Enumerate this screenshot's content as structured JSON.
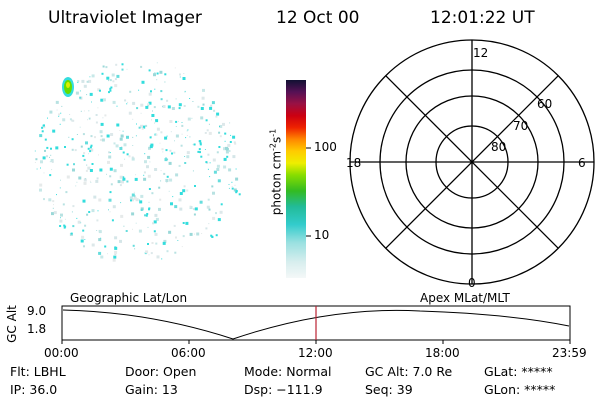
{
  "header": {
    "instrument": "Ultraviolet Imager",
    "date": "12 Oct 00",
    "time": "12:01:22 UT"
  },
  "colorbar": {
    "label_main": "photon cm",
    "label_exp1": "-2",
    "label_s": "s",
    "label_exp2": "-1",
    "tick_100": "100",
    "tick_10": "10"
  },
  "polar_plot": {
    "label_top": "12",
    "label_bottom": "0",
    "label_left": "18",
    "label_right": "6",
    "lat_60": "60",
    "lat_70": "70",
    "lat_80": "80"
  },
  "orbit_panel": {
    "left_label": "Geographic Lat/Lon",
    "right_label": "Apex MLat/MLT",
    "yaxis_label": "GC Alt",
    "y_top": "9.0",
    "y_bottom": "1.8",
    "x_ticks": [
      "00:00",
      "06:00",
      "12:00",
      "18:00",
      "23:59"
    ]
  },
  "info": {
    "flt": "Flt: LBHL",
    "ip": "IP: 36.0",
    "door": "Door: Open",
    "gain": "Gain: 13",
    "mode": "Mode: Normal",
    "dsp": "Dsp: −111.9",
    "gcalt": "GC Alt: 7.0 Re",
    "seq": "Seq: 39",
    "glat": "GLat: *****",
    "glon": "GLon: *****"
  },
  "colors": {
    "emission_cyan": "#33dddd",
    "emission_green": "#66dd00",
    "emission_yellow": "#ddee00",
    "marker": "#bb2233"
  }
}
